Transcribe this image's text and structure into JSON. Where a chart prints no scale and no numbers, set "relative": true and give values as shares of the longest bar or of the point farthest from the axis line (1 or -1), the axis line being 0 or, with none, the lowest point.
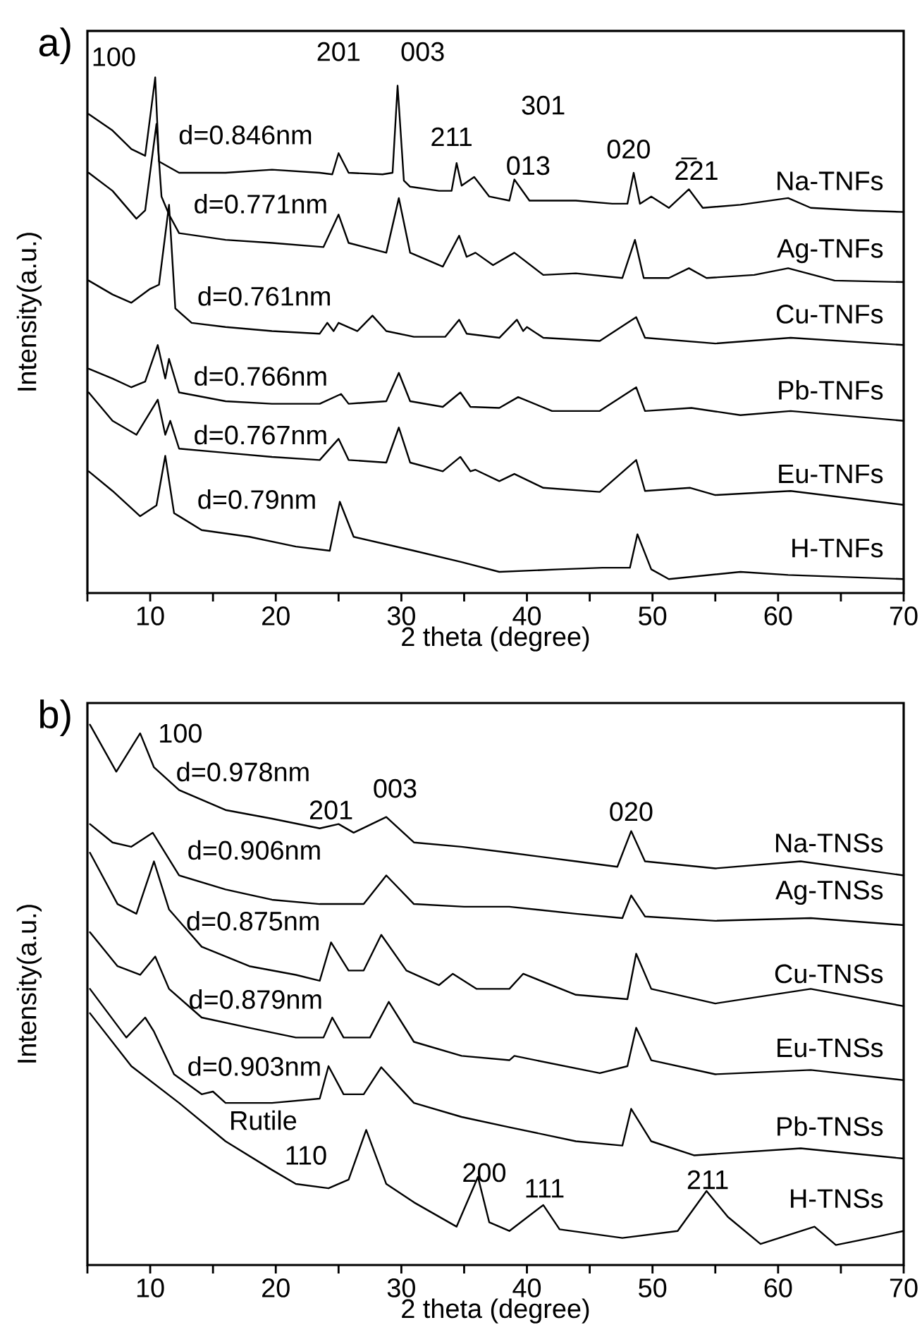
{
  "chart_data": [
    {
      "type": "line",
      "title": "a)",
      "xlabel": "2 theta (degree)",
      "ylabel": "Intensity(a.u.)",
      "relative": true,
      "xlim": [
        5,
        70
      ],
      "xticks": [
        {
          "value": 5,
          "label": null
        },
        10,
        {
          "value": 15,
          "label": null
        },
        20,
        {
          "value": 25,
          "label": null
        },
        30,
        {
          "value": 35,
          "label": null
        },
        40,
        {
          "value": 45,
          "label": null
        },
        50,
        {
          "value": 55,
          "label": null
        },
        60,
        {
          "value": 65,
          "label": null
        },
        70
      ],
      "tick_labels": "x",
      "series": [
        {
          "name": "Na-TNFs",
          "color": "#000000",
          "x": [
            5.1,
            7,
            8.5,
            9.6,
            10.4,
            10.7,
            12.3,
            16,
            19.7,
            23.5,
            24.5,
            25,
            25.8,
            28.5,
            29.3,
            29.7,
            30.2,
            30.7,
            33,
            34.0,
            34.4,
            34.8,
            35.8,
            37,
            38.6,
            39,
            40.2,
            43.9,
            46.8,
            48.0,
            48.5,
            49.0,
            49.9,
            51.3,
            52.9,
            54,
            57,
            60.8,
            62.6,
            66.4,
            70
          ],
          "values": [
            0.929,
            0.897,
            0.861,
            0.848,
            1.0,
            0.837,
            0.815,
            0.815,
            0.821,
            0.815,
            0.812,
            0.853,
            0.815,
            0.812,
            0.815,
            0.984,
            0.8,
            0.788,
            0.78,
            0.78,
            0.834,
            0.79,
            0.807,
            0.769,
            0.761,
            0.802,
            0.761,
            0.761,
            0.755,
            0.755,
            0.815,
            0.755,
            0.769,
            0.747,
            0.783,
            0.747,
            0.753,
            0.766,
            0.747,
            0.742,
            0.739
          ]
        },
        {
          "name": "Ag-TNFs",
          "color": "#000000",
          "x": [
            5.1,
            7,
            8.9,
            9.6,
            10.5,
            10.9,
            11.5,
            12.3,
            16,
            19.7,
            23.8,
            25,
            25.8,
            28.8,
            29.8,
            30.7,
            33.3,
            34.6,
            35.2,
            35.9,
            37.3,
            39,
            41.3,
            43.9,
            47.6,
            48.6,
            49.3,
            51.3,
            52.9,
            54.3,
            58.1,
            60.8,
            64.5,
            70
          ],
          "values": [
            0.815,
            0.78,
            0.726,
            0.742,
            0.91,
            0.769,
            0.734,
            0.698,
            0.685,
            0.679,
            0.671,
            0.734,
            0.679,
            0.66,
            0.766,
            0.66,
            0.633,
            0.693,
            0.652,
            0.66,
            0.636,
            0.66,
            0.617,
            0.62,
            0.611,
            0.685,
            0.611,
            0.611,
            0.63,
            0.611,
            0.617,
            0.63,
            0.606,
            0.603
          ]
        },
        {
          "name": "Cu-TNFs",
          "color": "#000000",
          "x": [
            5.1,
            7,
            8.5,
            10,
            10.7,
            11.5,
            12,
            13.3,
            16,
            19.7,
            23.5,
            24.1,
            24.6,
            25,
            26.5,
            27.7,
            28.8,
            31,
            33.5,
            34.6,
            35.2,
            37.8,
            39.2,
            39.7,
            40,
            41.3,
            45.8,
            48.7,
            49.4,
            55,
            61,
            70
          ],
          "values": [
            0.606,
            0.579,
            0.563,
            0.59,
            0.598,
            0.753,
            0.552,
            0.524,
            0.516,
            0.508,
            0.503,
            0.524,
            0.508,
            0.524,
            0.508,
            0.538,
            0.508,
            0.497,
            0.497,
            0.53,
            0.503,
            0.495,
            0.53,
            0.508,
            0.516,
            0.495,
            0.489,
            0.535,
            0.495,
            0.484,
            0.495,
            0.481
          ]
        },
        {
          "name": "Pb-TNFs",
          "color": "#000000",
          "x": [
            5.1,
            7,
            8.5,
            9.6,
            10.6,
            11.2,
            11.5,
            12.3,
            16,
            19.7,
            23.5,
            25.2,
            25.8,
            28.8,
            29.8,
            30.7,
            33.3,
            34.7,
            35.5,
            37.8,
            39.3,
            42,
            45.8,
            48.7,
            49.4,
            53.1,
            57,
            61,
            70
          ],
          "values": [
            0.435,
            0.416,
            0.399,
            0.41,
            0.481,
            0.416,
            0.454,
            0.389,
            0.372,
            0.367,
            0.367,
            0.386,
            0.367,
            0.372,
            0.427,
            0.372,
            0.361,
            0.389,
            0.361,
            0.359,
            0.38,
            0.353,
            0.353,
            0.399,
            0.353,
            0.359,
            0.345,
            0.353,
            0.334
          ]
        },
        {
          "name": "Eu-TNFs",
          "color": "#000000",
          "x": [
            5.1,
            7,
            8.9,
            10.6,
            11.2,
            11.6,
            12.3,
            16,
            19.7,
            23.5,
            25,
            25.8,
            28.8,
            29.8,
            30.7,
            33.3,
            34.7,
            35.5,
            35.9,
            37.8,
            39,
            41.3,
            45.8,
            48.7,
            49.4,
            53,
            55,
            61,
            70
          ],
          "values": [
            0.389,
            0.334,
            0.307,
            0.375,
            0.307,
            0.334,
            0.28,
            0.272,
            0.264,
            0.258,
            0.299,
            0.258,
            0.253,
            0.321,
            0.253,
            0.236,
            0.264,
            0.236,
            0.239,
            0.217,
            0.231,
            0.204,
            0.196,
            0.258,
            0.198,
            0.204,
            0.19,
            0.198,
            0.171
          ]
        },
        {
          "name": "H-TNFs",
          "color": "#000000",
          "x": [
            5.1,
            7,
            9.2,
            10.5,
            11.2,
            11.9,
            14.1,
            17.9,
            21.6,
            24.3,
            25.1,
            26.2,
            31,
            34.8,
            37.8,
            42.6,
            46,
            48.2,
            48.8,
            49.9,
            51.3,
            57,
            60.8,
            70
          ],
          "values": [
            0.236,
            0.198,
            0.149,
            0.17,
            0.266,
            0.155,
            0.122,
            0.109,
            0.09,
            0.082,
            0.177,
            0.109,
            0.082,
            0.06,
            0.041,
            0.046,
            0.049,
            0.049,
            0.114,
            0.046,
            0.027,
            0.041,
            0.035,
            0.027
          ]
        }
      ],
      "annotations": [
        "100",
        "201",
        "003",
        "211",
        "301",
        "013",
        "020",
        "2̅21",
        "d=0.846nm",
        "d=0.771nm",
        "d=0.761nm",
        "d=0.766nm",
        "d=0.767nm",
        "d=0.79nm"
      ]
    },
    {
      "type": "line",
      "title": "b)",
      "xlabel": "2 theta (degree)",
      "ylabel": "Intensity(a.u.)",
      "relative": true,
      "xlim": [
        5,
        70
      ],
      "xticks": [
        {
          "value": 5,
          "label": null
        },
        10,
        {
          "value": 15,
          "label": null
        },
        20,
        {
          "value": 25,
          "label": null
        },
        30,
        {
          "value": 35,
          "label": null
        },
        40,
        {
          "value": 45,
          "label": null
        },
        50,
        {
          "value": 55,
          "label": null
        },
        60,
        {
          "value": 65,
          "label": null
        },
        70
      ],
      "tick_labels": "x",
      "series": [
        {
          "name": "Na-TNSs",
          "color": "#000000",
          "x": [
            5.2,
            7.3,
            9.2,
            10.3,
            12.3,
            16,
            19.7,
            23.5,
            25,
            26.2,
            28.8,
            31,
            34.8,
            38.6,
            43.9,
            47.2,
            48.3,
            49.4,
            55,
            61.8,
            70
          ],
          "values": [
            1.0,
            0.913,
            0.984,
            0.921,
            0.879,
            0.842,
            0.826,
            0.808,
            0.816,
            0.8,
            0.829,
            0.782,
            0.774,
            0.763,
            0.747,
            0.737,
            0.803,
            0.747,
            0.734,
            0.747,
            0.721
          ]
        },
        {
          "name": "Ag-TNSs",
          "color": "#000000",
          "x": [
            5.2,
            7,
            8.5,
            10.2,
            12.3,
            16,
            19.7,
            23.5,
            27,
            28.8,
            31,
            35,
            38.6,
            43.9,
            47.6,
            48.3,
            49.4,
            55,
            62.6,
            70
          ],
          "values": [
            0.816,
            0.782,
            0.774,
            0.8,
            0.721,
            0.695,
            0.676,
            0.668,
            0.668,
            0.721,
            0.668,
            0.663,
            0.663,
            0.65,
            0.642,
            0.684,
            0.645,
            0.637,
            0.642,
            0.629
          ]
        },
        {
          "name": "Cu-TNSs",
          "color": "#000000",
          "x": [
            5.2,
            7.4,
            8.9,
            10.3,
            11.5,
            14.1,
            17.9,
            21.6,
            23.5,
            24.4,
            25.8,
            27,
            28.4,
            30.4,
            33,
            34.1,
            36,
            38.6,
            39.7,
            43.9,
            48,
            48.7,
            49.9,
            55,
            62.6,
            70
          ],
          "values": [
            0.763,
            0.668,
            0.65,
            0.747,
            0.658,
            0.589,
            0.553,
            0.537,
            0.526,
            0.597,
            0.545,
            0.545,
            0.611,
            0.545,
            0.518,
            0.539,
            0.511,
            0.511,
            0.539,
            0.5,
            0.492,
            0.576,
            0.511,
            0.484,
            0.511,
            0.479
          ]
        },
        {
          "name": "Eu-TNSs",
          "color": "#000000",
          "x": [
            5.2,
            7.4,
            9.2,
            10.4,
            11.5,
            14.1,
            17.9,
            21.6,
            23.8,
            24.5,
            25.4,
            27.5,
            29,
            31,
            34.8,
            38.6,
            39,
            45.8,
            48,
            48.7,
            49.9,
            55,
            62.6,
            70
          ],
          "values": [
            0.616,
            0.553,
            0.537,
            0.571,
            0.511,
            0.458,
            0.439,
            0.421,
            0.421,
            0.458,
            0.421,
            0.421,
            0.487,
            0.413,
            0.387,
            0.379,
            0.387,
            0.355,
            0.368,
            0.439,
            0.379,
            0.353,
            0.361,
            0.342
          ]
        },
        {
          "name": "Pb-TNSs",
          "color": "#000000",
          "x": [
            5.2,
            8.1,
            9.6,
            10.3,
            11.9,
            14.1,
            15,
            16,
            19.7,
            23.5,
            24.2,
            25.4,
            27,
            28.4,
            31,
            34.8,
            38.6,
            43.9,
            47.6,
            48.3,
            49.9,
            53.3,
            61.8,
            70
          ],
          "values": [
            0.511,
            0.421,
            0.458,
            0.432,
            0.353,
            0.316,
            0.321,
            0.3,
            0.3,
            0.308,
            0.368,
            0.316,
            0.316,
            0.366,
            0.3,
            0.274,
            0.255,
            0.229,
            0.221,
            0.289,
            0.229,
            0.203,
            0.216,
            0.197
          ]
        },
        {
          "name": "H-TNSs",
          "color": "#000000",
          "x": [
            5.2,
            8.5,
            12.3,
            16,
            19.7,
            21.6,
            24.2,
            25.8,
            27.2,
            28.8,
            31,
            34.4,
            36.1,
            37,
            38.6,
            41.3,
            42.6,
            47.6,
            52,
            54.3,
            56,
            58.6,
            62.9,
            64.6,
            68,
            70
          ],
          "values": [
            0.466,
            0.368,
            0.3,
            0.229,
            0.176,
            0.15,
            0.142,
            0.158,
            0.25,
            0.15,
            0.116,
            0.071,
            0.163,
            0.079,
            0.063,
            0.111,
            0.066,
            0.05,
            0.063,
            0.137,
            0.089,
            0.039,
            0.071,
            0.037,
            0.053,
            0.063
          ]
        }
      ],
      "annotations": [
        "100",
        "d=0.978nm",
        "201",
        "003",
        "020",
        "d=0.906nm",
        "d=0.875nm",
        "d=0.879nm",
        "d=0.903nm",
        "Rutile",
        "110",
        "200",
        "111",
        "211"
      ]
    }
  ]
}
